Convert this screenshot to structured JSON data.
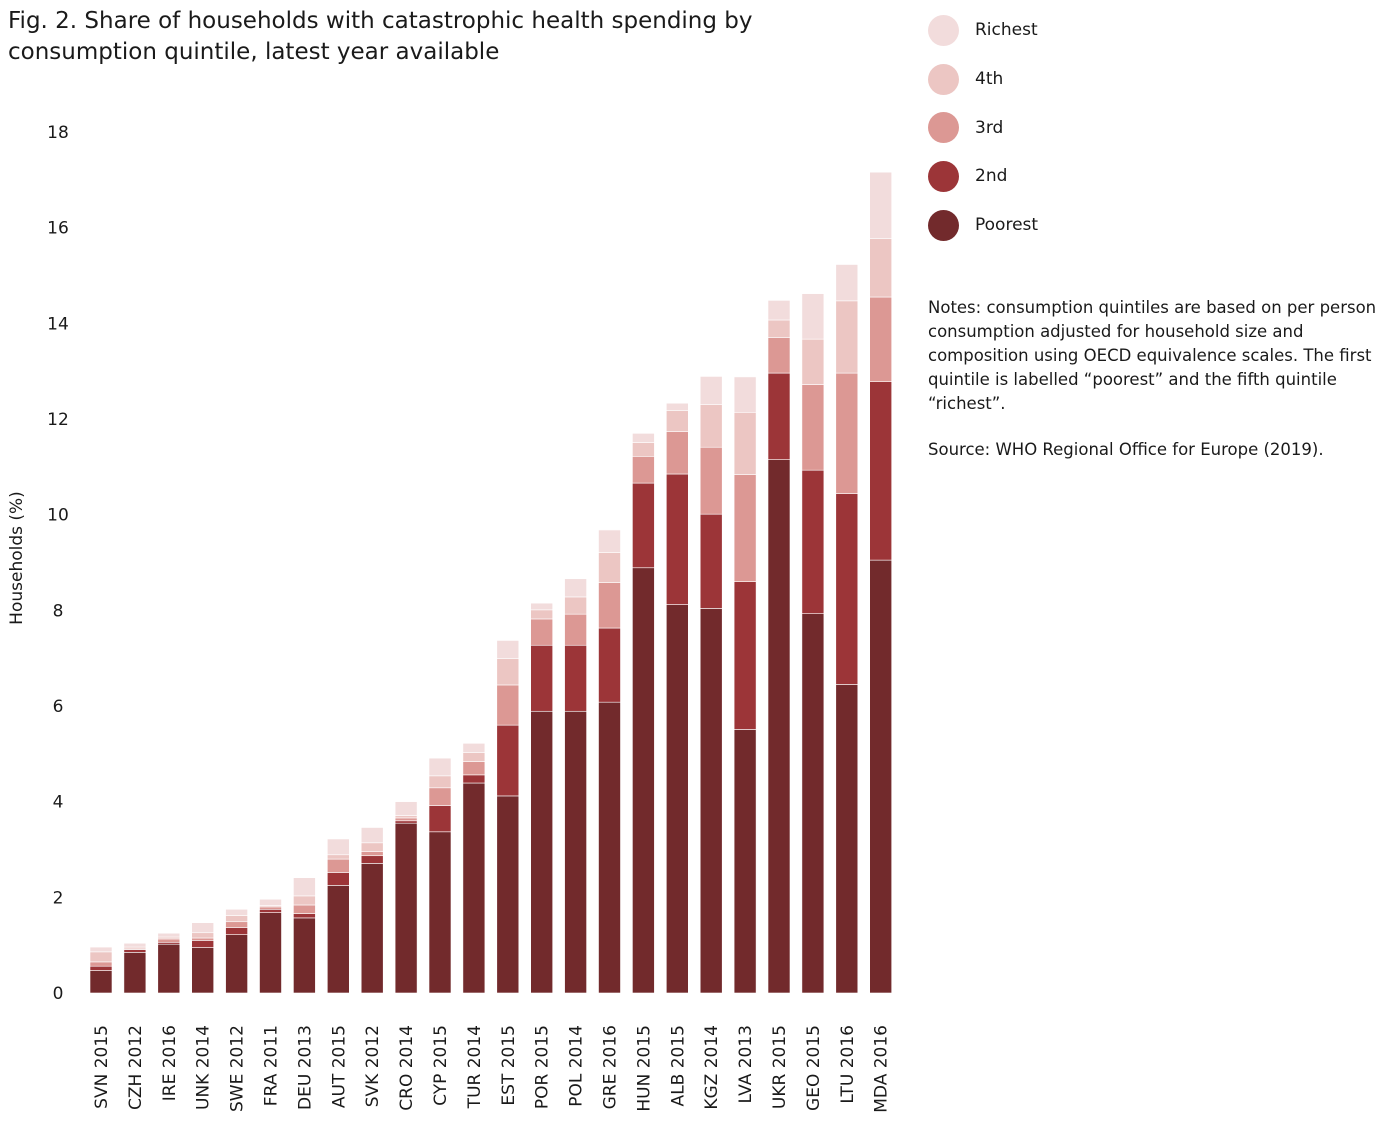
{
  "title": "Fig. 2. Share of households with catastrophic health spending by consumption quintile, latest year available",
  "notes": "Notes: consumption quintiles are based on per person consumption adjusted for household size and composition using OECD equivalence scales. The first quintile is labelled “poorest” and the fifth quintile “richest”.",
  "source": "Source: WHO Regional Office for Europe (2019).",
  "legend": [
    {
      "label": "Richest",
      "color": "#f2dcdc"
    },
    {
      "label": "4th",
      "color": "#ecc6c3"
    },
    {
      "label": "3rd",
      "color": "#dc9894"
    },
    {
      "label": "2nd",
      "color": "#9c3538"
    },
    {
      "label": "Poorest",
      "color": "#722a2c"
    }
  ],
  "chart_data": {
    "type": "bar",
    "stacked": true,
    "ylabel": "Households (%)",
    "xlabel": "",
    "ylim": [
      0,
      18
    ],
    "yticks": [
      0,
      2,
      4,
      6,
      8,
      10,
      12,
      14,
      16,
      18
    ],
    "grid": false,
    "legend_position": "top-right",
    "categories": [
      "SVN 2015",
      "CZH 2012",
      "IRE 2016",
      "UNK 2014",
      "SWE 2012",
      "FRA 2011",
      "DEU 2013",
      "AUT 2015",
      "SVK 2012",
      "CRO 2014",
      "CYP 2015",
      "TUR 2014",
      "EST 2015",
      "POR 2015",
      "POL 2014",
      "GRE 2016",
      "HUN 2015",
      "ALB 2015",
      "KGZ 2014",
      "LVA 2013",
      "UKR 2015",
      "GEO 2015",
      "LTU 2016",
      "MDA 2016"
    ],
    "series": [
      {
        "name": "Poorest",
        "color": "#722a2c",
        "values": [
          0.47,
          0.85,
          1.02,
          0.95,
          1.22,
          1.68,
          1.57,
          2.25,
          2.71,
          3.55,
          3.37,
          4.39,
          4.12,
          5.89,
          5.89,
          6.08,
          8.89,
          8.12,
          8.04,
          5.51,
          11.15,
          7.93,
          6.45,
          9.05
        ]
      },
      {
        "name": "2nd",
        "color": "#9c3538",
        "values": [
          0.09,
          0.06,
          0.04,
          0.15,
          0.15,
          0.07,
          0.09,
          0.27,
          0.16,
          0.05,
          0.55,
          0.17,
          1.48,
          1.38,
          1.38,
          1.55,
          1.77,
          2.73,
          1.97,
          3.09,
          1.81,
          3.0,
          3.99,
          3.73
        ]
      },
      {
        "name": "3rd",
        "color": "#dc9894",
        "values": [
          0.09,
          0.01,
          0.07,
          0.05,
          0.12,
          0.05,
          0.18,
          0.28,
          0.09,
          0.06,
          0.37,
          0.28,
          0.84,
          0.55,
          0.65,
          0.95,
          0.56,
          0.89,
          1.4,
          2.24,
          0.74,
          1.79,
          2.52,
          1.77
        ]
      },
      {
        "name": "4th",
        "color": "#ecc6c3",
        "values": [
          0.21,
          0.04,
          0.04,
          0.11,
          0.13,
          0.03,
          0.19,
          0.09,
          0.18,
          0.05,
          0.25,
          0.19,
          0.55,
          0.19,
          0.36,
          0.63,
          0.29,
          0.44,
          0.89,
          1.3,
          0.37,
          0.95,
          1.51,
          1.22
        ]
      },
      {
        "name": "Richest",
        "color": "#f2dcdc",
        "values": [
          0.1,
          0.08,
          0.08,
          0.21,
          0.13,
          0.13,
          0.38,
          0.33,
          0.32,
          0.29,
          0.37,
          0.19,
          0.38,
          0.14,
          0.38,
          0.47,
          0.19,
          0.15,
          0.59,
          0.74,
          0.41,
          0.95,
          0.76,
          1.39
        ]
      }
    ]
  }
}
